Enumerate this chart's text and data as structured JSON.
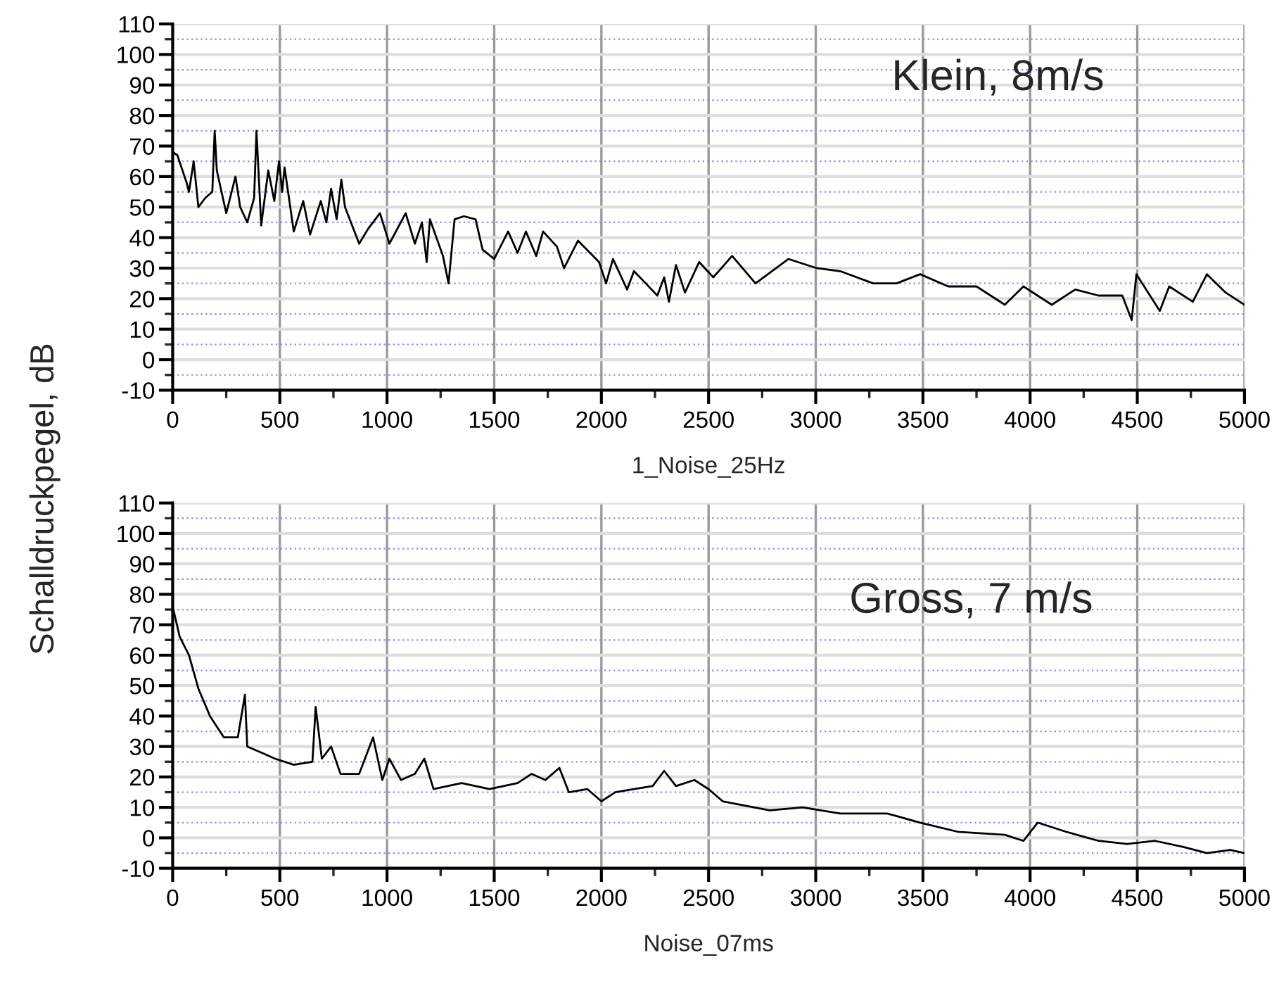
{
  "chart_data": [
    {
      "type": "line",
      "xlabel": "1_Noise_25Hz",
      "ylabel": "Schalldruckpegel, dB",
      "annotations": [
        "Klein, 8m/s"
      ],
      "xlim": [
        0,
        5000
      ],
      "ylim": [
        -10,
        110
      ],
      "xticks": [
        0,
        {
          "value": 250,
          "label": null
        },
        500,
        {
          "value": 750,
          "label": null
        },
        1000,
        {
          "value": 1250,
          "label": null
        },
        1500,
        {
          "value": 1750,
          "label": null
        },
        2000,
        {
          "value": 2250,
          "label": null
        },
        2500,
        {
          "value": 2750,
          "label": null
        },
        3000,
        {
          "value": 3250,
          "label": null
        },
        3500,
        {
          "value": 3750,
          "label": null
        },
        4000,
        {
          "value": 4250,
          "label": null
        },
        4500,
        {
          "value": 4750,
          "label": null
        },
        5000
      ],
      "yticks": [
        -10,
        {
          "value": -5,
          "label": null
        },
        0,
        {
          "value": 5,
          "label": null
        },
        10,
        {
          "value": 15,
          "label": null
        },
        20,
        {
          "value": 25,
          "label": null
        },
        30,
        {
          "value": 35,
          "label": null
        },
        40,
        {
          "value": 45,
          "label": null
        },
        50,
        {
          "value": 55,
          "label": null
        },
        60,
        {
          "value": 65,
          "label": null
        },
        70,
        {
          "value": 75,
          "label": null
        },
        80,
        {
          "value": 85,
          "label": null
        },
        90,
        {
          "value": 95,
          "label": null
        },
        100,
        {
          "value": 105,
          "label": null
        },
        110
      ],
      "grid": true,
      "line_style": "solid",
      "series": [
        {
          "color": "#000000",
          "x": [
            0,
            22,
            65,
            76,
            98,
            120,
            152,
            185,
            196,
            206,
            250,
            293,
            315,
            348,
            380,
            391,
            413,
            446,
            474,
            496,
            511,
            522,
            565,
            609,
            641,
            691,
            717,
            739,
            765,
            787,
            804,
            870,
            913,
            967,
            1011,
            1087,
            1130,
            1163,
            1185,
            1200,
            1261,
            1287,
            1315,
            1359,
            1413,
            1446,
            1500,
            1565,
            1609,
            1648,
            1696,
            1728,
            1793,
            1826,
            1891,
            1989,
            2022,
            2054,
            2120,
            2152,
            2207,
            2261,
            2293,
            2315,
            2348,
            2390,
            2456,
            2522,
            2610,
            2719,
            2873,
            3004,
            3114,
            3268,
            3377,
            3487,
            3618,
            3750,
            3882,
            3969,
            4101,
            4211,
            4320,
            4430,
            4474,
            4496,
            4605,
            4649,
            4759,
            4825,
            4912,
            5000
          ],
          "values": [
            68,
            67,
            58,
            55,
            65,
            50,
            53,
            55,
            75,
            62,
            48,
            60,
            50,
            45,
            53,
            75,
            44,
            62,
            52,
            65,
            55,
            63,
            42,
            52,
            41,
            52,
            45,
            56,
            46,
            59,
            50,
            38,
            43,
            48,
            38,
            48,
            38,
            45,
            32,
            46,
            34,
            25,
            46,
            47,
            46,
            36,
            33,
            42,
            35,
            42,
            34,
            42,
            37,
            30,
            39,
            32,
            25,
            33,
            23,
            29,
            25,
            21,
            27,
            19,
            31,
            22,
            32,
            27,
            34,
            25,
            33,
            30,
            29,
            25,
            25,
            28,
            24,
            24,
            18,
            24,
            18,
            23,
            21,
            21,
            13,
            28,
            16,
            24,
            19,
            28,
            22,
            18
          ]
        }
      ]
    },
    {
      "type": "line",
      "xlabel": "Noise_07ms",
      "annotations": [
        "Gross, 7 m/s"
      ],
      "xlim": [
        0,
        5000
      ],
      "ylim": [
        -10,
        110
      ],
      "xticks": [
        0,
        {
          "value": 250,
          "label": null
        },
        500,
        {
          "value": 750,
          "label": null
        },
        1000,
        {
          "value": 1250,
          "label": null
        },
        1500,
        {
          "value": 1750,
          "label": null
        },
        2000,
        {
          "value": 2250,
          "label": null
        },
        2500,
        {
          "value": 2750,
          "label": null
        },
        3000,
        {
          "value": 3250,
          "label": null
        },
        3500,
        {
          "value": 3750,
          "label": null
        },
        4000,
        {
          "value": 4250,
          "label": null
        },
        4500,
        {
          "value": 4750,
          "label": null
        },
        5000
      ],
      "yticks": [
        -10,
        {
          "value": -5,
          "label": null
        },
        0,
        {
          "value": 5,
          "label": null
        },
        10,
        {
          "value": 15,
          "label": null
        },
        20,
        {
          "value": 25,
          "label": null
        },
        30,
        {
          "value": 35,
          "label": null
        },
        40,
        {
          "value": 45,
          "label": null
        },
        50,
        {
          "value": 55,
          "label": null
        },
        60,
        {
          "value": 65,
          "label": null
        },
        70,
        {
          "value": 75,
          "label": null
        },
        80,
        {
          "value": 85,
          "label": null
        },
        90,
        {
          "value": 95,
          "label": null
        },
        100,
        {
          "value": 105,
          "label": null
        },
        110
      ],
      "grid": true,
      "line_style": "solid",
      "series": [
        {
          "color": "#000000",
          "x": [
            0,
            33,
            76,
            120,
            174,
            239,
            304,
            337,
            348,
            413,
            478,
            565,
            652,
            667,
            696,
            739,
            783,
            870,
            935,
            978,
            1011,
            1065,
            1130,
            1174,
            1217,
            1348,
            1478,
            1609,
            1674,
            1739,
            1804,
            1848,
            1935,
            2000,
            2065,
            2152,
            2239,
            2293,
            2348,
            2434,
            2500,
            2566,
            2785,
            2939,
            3114,
            3333,
            3487,
            3662,
            3882,
            3969,
            4035,
            4167,
            4320,
            4452,
            4583,
            4715,
            4825,
            4934,
            5000
          ],
          "values": [
            76,
            66,
            60,
            49,
            40,
            33,
            33,
            47,
            30,
            28,
            26,
            24,
            25,
            43,
            26,
            30,
            21,
            21,
            33,
            19,
            26,
            19,
            21,
            26,
            16,
            18,
            16,
            18,
            21,
            19,
            23,
            15,
            16,
            12,
            15,
            16,
            17,
            22,
            17,
            19,
            16,
            12,
            9,
            10,
            8,
            8,
            5,
            2,
            1,
            -1,
            5,
            2,
            -1,
            -2,
            -1,
            -3,
            -5,
            -4,
            -5
          ]
        }
      ]
    }
  ]
}
